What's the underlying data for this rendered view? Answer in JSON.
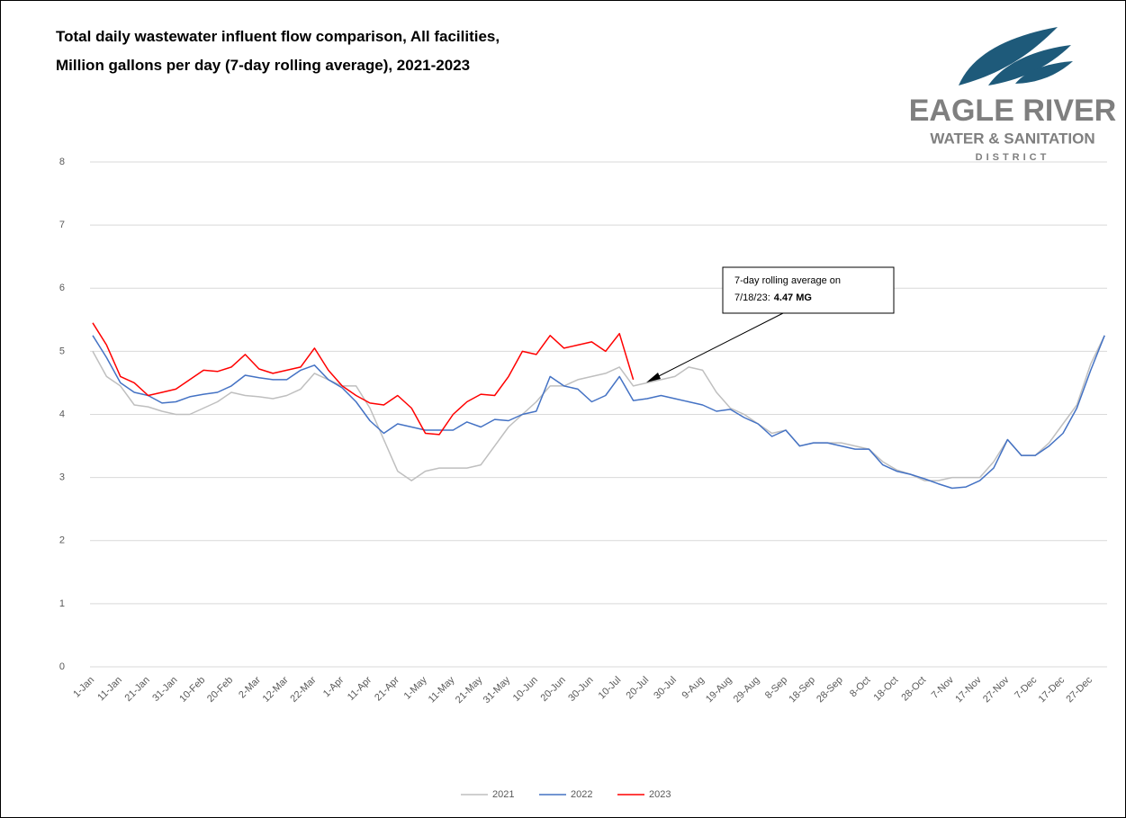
{
  "chart_data": {
    "type": "line",
    "title": [
      "Total daily wastewater influent flow comparison, All facilities,",
      "Million gallons per day (7-day rolling average), 2021-2023"
    ],
    "categories": [
      "1-Jan",
      null,
      "11-Jan",
      null,
      "21-Jan",
      null,
      "31-Jan",
      null,
      "10-Feb",
      null,
      "20-Feb",
      null,
      "2-Mar",
      null,
      "12-Mar",
      null,
      "22-Mar",
      null,
      "1-Apr",
      null,
      "11-Apr",
      null,
      "21-Apr",
      null,
      "1-May",
      null,
      "11-May",
      null,
      "21-May",
      null,
      "31-May",
      null,
      "10-Jun",
      null,
      "20-Jun",
      null,
      "30-Jun",
      null,
      "10-Jul",
      null,
      "20-Jul",
      null,
      "30-Jul",
      null,
      "9-Aug",
      null,
      "19-Aug",
      null,
      "29-Aug",
      null,
      "8-Sep",
      null,
      "18-Sep",
      null,
      "28-Sep",
      null,
      "8-Oct",
      null,
      "18-Oct",
      null,
      "28-Oct",
      null,
      "7-Nov",
      null,
      "17-Nov",
      null,
      "27-Nov",
      null,
      "7-Dec",
      null,
      "17-Dec",
      null,
      "27-Dec",
      null
    ],
    "series": [
      {
        "name": "2021",
        "color": "#bfbfbf",
        "values": [
          5.0,
          4.6,
          4.45,
          4.15,
          4.12,
          4.05,
          4.0,
          4.0,
          4.1,
          4.2,
          4.35,
          4.3,
          4.28,
          4.25,
          4.3,
          4.4,
          4.65,
          4.55,
          4.45,
          4.45,
          4.1,
          3.6,
          3.1,
          2.95,
          3.1,
          3.15,
          3.15,
          3.15,
          3.2,
          3.5,
          3.8,
          4.0,
          4.2,
          4.45,
          4.45,
          4.55,
          4.6,
          4.65,
          4.75,
          4.45,
          4.5,
          4.55,
          4.6,
          4.75,
          4.7,
          4.35,
          4.1,
          4.0,
          3.85,
          3.7,
          3.75,
          3.5,
          3.55,
          3.55,
          3.55,
          3.5,
          3.45,
          3.25,
          3.12,
          3.05,
          2.95,
          2.95,
          3.0,
          3.0,
          3.0,
          3.25,
          3.6,
          3.35,
          3.35,
          3.55,
          3.85,
          4.15,
          4.8,
          5.25
        ]
      },
      {
        "name": "2022",
        "color": "#4472c4",
        "values": [
          5.25,
          4.9,
          4.5,
          4.35,
          4.3,
          4.18,
          4.2,
          4.28,
          4.32,
          4.35,
          4.45,
          4.62,
          4.58,
          4.55,
          4.55,
          4.7,
          4.78,
          4.55,
          4.42,
          4.2,
          3.9,
          3.7,
          3.85,
          3.8,
          3.75,
          3.75,
          3.75,
          3.88,
          3.8,
          3.92,
          3.9,
          4.0,
          4.05,
          4.6,
          4.45,
          4.4,
          4.2,
          4.3,
          4.6,
          4.22,
          4.25,
          4.3,
          4.25,
          4.2,
          4.15,
          4.05,
          4.08,
          3.95,
          3.85,
          3.65,
          3.75,
          3.5,
          3.55,
          3.55,
          3.5,
          3.45,
          3.45,
          3.2,
          3.1,
          3.05,
          2.98,
          2.9,
          2.83,
          2.85,
          2.95,
          3.15,
          3.6,
          3.35,
          3.35,
          3.5,
          3.7,
          4.1,
          4.7,
          5.25
        ]
      },
      {
        "name": "2023",
        "color": "#ff0000",
        "values": [
          5.45,
          5.1,
          4.6,
          4.5,
          4.3,
          4.35,
          4.4,
          4.55,
          4.7,
          4.68,
          4.75,
          4.95,
          4.72,
          4.65,
          4.7,
          4.75,
          5.05,
          4.7,
          4.45,
          4.3,
          4.18,
          4.15,
          4.3,
          4.1,
          3.7,
          3.68,
          4.0,
          4.2,
          4.32,
          4.3,
          4.6,
          5.0,
          4.95,
          5.25,
          5.05,
          5.1,
          5.15,
          5.0,
          5.28,
          4.55,
          null,
          null,
          null,
          null,
          null,
          null,
          null,
          null,
          null,
          null,
          null,
          null,
          null,
          null,
          null,
          null,
          null,
          null,
          null,
          null,
          null,
          null,
          null,
          null,
          null,
          null,
          null,
          null,
          null,
          null,
          null,
          null,
          null,
          null
        ]
      }
    ],
    "ylim": [
      0,
      8
    ],
    "yticks": [
      0,
      1,
      2,
      3,
      4,
      5,
      6,
      7,
      8
    ],
    "grid": true,
    "legend": "bottom",
    "annotation": {
      "lines": [
        "7-day rolling average on",
        "7/18/23:"
      ],
      "bold": "4.47 MG"
    },
    "logo": {
      "name": "EAGLE RIVER",
      "sub": "WATER & SANITATION",
      "kind": "DISTRICT"
    }
  }
}
